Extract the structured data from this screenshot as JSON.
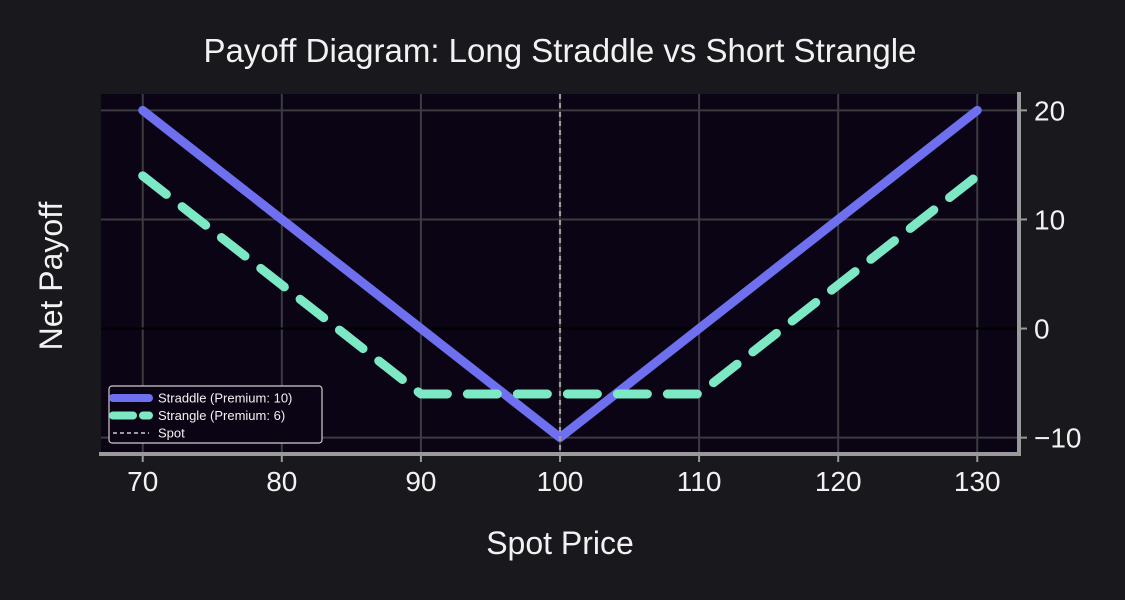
{
  "chart_data": {
    "type": "line",
    "title": "Payoff Diagram: Long Straddle vs Short Strangle",
    "xlabel": "Spot Price",
    "ylabel": "Net Payoff",
    "xlim": [
      67,
      133
    ],
    "ylim": [
      -11.5,
      21.5
    ],
    "xticks": [
      70,
      80,
      90,
      100,
      110,
      120,
      130
    ],
    "yticks": [
      -10,
      0,
      10,
      20
    ],
    "ytick_labels": [
      "−10",
      "0",
      "10",
      "20"
    ],
    "grid": true,
    "y_axis_side": "right",
    "legend_position": "bottom-left",
    "background_color": "#0a0414",
    "figure_color": "#19181c",
    "series": [
      {
        "name": "Straddle (Premium: 10)",
        "color": "#6f70ef",
        "style": "solid",
        "x": [
          70,
          100,
          130
        ],
        "y": [
          20,
          -10,
          20
        ]
      },
      {
        "name": "Strangle (Premium: 6)",
        "color": "#7ce8c4",
        "style": "dashed",
        "x": [
          70,
          90,
          110,
          130
        ],
        "y": [
          14,
          -6,
          -6,
          14
        ]
      },
      {
        "name": "Spot",
        "color": "#9a9a9a",
        "style": "dotted",
        "vertical_line_x": 100
      }
    ],
    "reference_lines": [
      {
        "axis": "y",
        "value": 0,
        "color": "#000000"
      }
    ]
  }
}
